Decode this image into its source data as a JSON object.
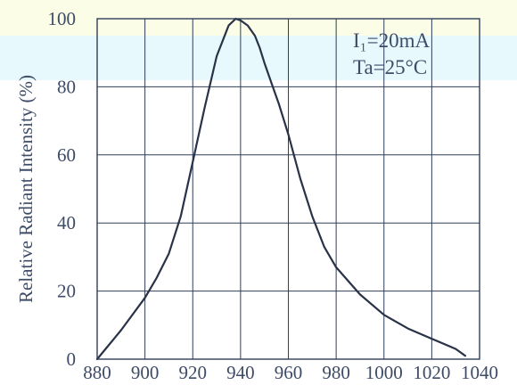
{
  "chart_data": {
    "type": "line",
    "title": "",
    "xlabel": "",
    "ylabel": "Relative Radiant Intensity (%)",
    "xlim": [
      880,
      1040
    ],
    "ylim": [
      0,
      100
    ],
    "x_ticks": [
      880,
      900,
      920,
      940,
      960,
      980,
      1000,
      1020,
      1040
    ],
    "y_ticks": [
      0,
      20,
      40,
      60,
      80,
      100
    ],
    "grid": true,
    "annotations": [
      "I₁=20mA",
      "Ta=25°C"
    ],
    "series": [
      {
        "x": [
          880,
          890,
          900,
          905,
          910,
          915,
          920,
          925,
          930,
          935,
          938,
          940,
          943,
          946,
          948,
          950,
          953,
          956,
          960,
          965,
          970,
          975,
          980,
          990,
          1000,
          1010,
          1020,
          1030,
          1034
        ],
        "y": [
          0,
          8.5,
          18,
          24,
          31,
          42,
          58,
          74,
          89,
          98,
          100,
          99.5,
          98,
          95,
          91.5,
          87,
          81,
          75,
          66,
          53,
          42,
          33,
          27,
          19,
          13,
          9,
          6,
          3,
          1
        ]
      }
    ]
  }
}
